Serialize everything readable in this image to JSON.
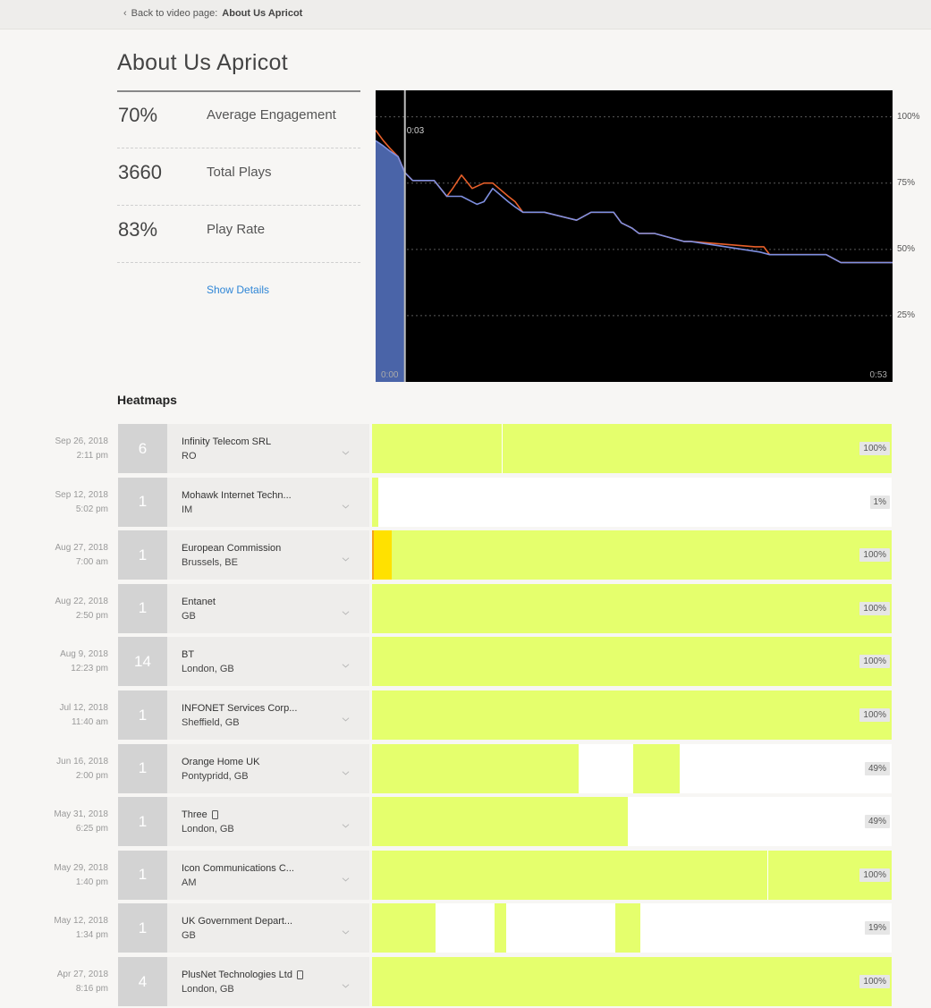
{
  "nav": {
    "back_prefix": "Back to video page:",
    "back_target": "About Us Apricot"
  },
  "page": {
    "title": "About Us Apricot"
  },
  "stats": [
    {
      "value": "70%",
      "label": "Average Engagement"
    },
    {
      "value": "3660",
      "label": "Total Plays"
    },
    {
      "value": "83%",
      "label": "Play Rate"
    }
  ],
  "show_details": "Show Details",
  "chart_data": {
    "type": "line",
    "x_unit": "seconds",
    "xlim": [
      0,
      53
    ],
    "ylim": [
      0,
      110
    ],
    "y_ticks": [
      "100%",
      "75%",
      "50%",
      "25%"
    ],
    "x_start_label": "0:00",
    "x_end_label": "0:53",
    "playhead_label": "0:03",
    "playhead_time": 3,
    "colors": {
      "background": "#000000",
      "blue": "#7e8fe0",
      "orange": "#e8602a",
      "fill": "#4a64a8"
    },
    "series": [
      {
        "color": "blue",
        "x": [
          0,
          0.8,
          1.5,
          2.3,
          3,
          3.8,
          6,
          7.3,
          8.8,
          10.4,
          11.1,
          12,
          13.6,
          14.3,
          15.1,
          17.3,
          20.6,
          22.1,
          24.4,
          25.2,
          26.3,
          27,
          28.6,
          31.6,
          32.3,
          39.4,
          40.4,
          41.2,
          46.2,
          47.7,
          53
        ],
        "y": [
          91,
          89,
          87,
          85,
          79,
          76,
          76,
          70,
          70,
          67,
          68,
          73,
          68,
          66,
          64,
          64,
          61,
          64,
          64,
          60,
          58,
          56,
          56,
          53,
          53,
          49,
          48,
          48,
          48,
          45,
          45
        ]
      },
      {
        "color": "orange",
        "x": [
          0,
          0.8,
          1.5,
          2.3,
          3,
          3.8,
          6,
          7.3,
          7.9,
          8.8,
          9.9,
          11.1,
          12,
          13.6,
          14.3,
          15.1,
          17.3,
          20.6,
          22.1,
          24.4,
          25.2,
          26.3,
          27,
          28.6,
          31.6,
          32.3,
          38.9,
          39.8,
          40.4,
          41.2,
          46.2,
          47.7,
          53
        ],
        "y": [
          95,
          91,
          88,
          85,
          79,
          76,
          76,
          70,
          73,
          78,
          73,
          75,
          75,
          70,
          68,
          64,
          64,
          61,
          64,
          64,
          60,
          58,
          56,
          56,
          53,
          53,
          51,
          51,
          48,
          48,
          48,
          45,
          45
        ]
      }
    ]
  },
  "heatmaps": {
    "title": "Heatmaps",
    "colors": {
      "watched": "#e5ff6d",
      "rewatched": "#ffe100",
      "rewatched_edge": "#f6a31a",
      "unwatched": "#ffffff"
    },
    "rows": [
      {
        "date": "Sep 26, 2018",
        "time": "2:11 pm",
        "count": "6",
        "org": "Infinity Telecom SRL",
        "location": "RO",
        "mobile": false,
        "percent": "100%",
        "segments": [
          {
            "start": 0,
            "end": 0.25,
            "kind": "watched"
          },
          {
            "start": 0.252,
            "end": 1,
            "kind": "watched"
          }
        ]
      },
      {
        "date": "Sep 12, 2018",
        "time": "5:02 pm",
        "count": "1",
        "org": "Mohawk Internet Techn...",
        "location": "IM",
        "mobile": false,
        "percent": "1%",
        "segments": [
          {
            "start": 0,
            "end": 0.012,
            "kind": "watched"
          }
        ]
      },
      {
        "date": "Aug 27, 2018",
        "time": "7:00 am",
        "count": "1",
        "org": "European Commission",
        "location": "Brussels, BE",
        "mobile": false,
        "percent": "100%",
        "segments": [
          {
            "start": 0,
            "end": 0.004,
            "kind": "rewatched_edge"
          },
          {
            "start": 0.004,
            "end": 0.038,
            "kind": "rewatched"
          },
          {
            "start": 0.038,
            "end": 1,
            "kind": "watched"
          }
        ]
      },
      {
        "date": "Aug 22, 2018",
        "time": "2:50 pm",
        "count": "1",
        "org": "Entanet",
        "location": "GB",
        "mobile": false,
        "percent": "100%",
        "segments": [
          {
            "start": 0,
            "end": 1,
            "kind": "watched"
          }
        ]
      },
      {
        "date": "Aug 9, 2018",
        "time": "12:23 pm",
        "count": "14",
        "org": "BT",
        "location": "London, GB",
        "mobile": false,
        "percent": "100%",
        "segments": [
          {
            "start": 0,
            "end": 1,
            "kind": "watched"
          }
        ]
      },
      {
        "date": "Jul 12, 2018",
        "time": "11:40 am",
        "count": "1",
        "org": "INFONET Services Corp...",
        "location": "Sheffield, GB",
        "mobile": false,
        "percent": "100%",
        "segments": [
          {
            "start": 0,
            "end": 1,
            "kind": "watched"
          }
        ]
      },
      {
        "date": "Jun 16, 2018",
        "time": "2:00 pm",
        "count": "1",
        "org": "Orange Home UK",
        "location": "Pontypridd, GB",
        "mobile": false,
        "percent": "49%",
        "segments": [
          {
            "start": 0,
            "end": 0.397,
            "kind": "watched"
          },
          {
            "start": 0.502,
            "end": 0.592,
            "kind": "watched"
          }
        ]
      },
      {
        "date": "May 31, 2018",
        "time": "6:25 pm",
        "count": "1",
        "org": "Three",
        "location": "London, GB",
        "mobile": true,
        "percent": "49%",
        "segments": [
          {
            "start": 0,
            "end": 0.493,
            "kind": "watched"
          }
        ]
      },
      {
        "date": "May 29, 2018",
        "time": "1:40 pm",
        "count": "1",
        "org": "Icon Communications C...",
        "location": "AM",
        "mobile": false,
        "percent": "100%",
        "segments": [
          {
            "start": 0,
            "end": 0.76,
            "kind": "watched"
          },
          {
            "start": 0.762,
            "end": 1,
            "kind": "watched"
          }
        ]
      },
      {
        "date": "May 12, 2018",
        "time": "1:34 pm",
        "count": "1",
        "org": "UK Government Depart...",
        "location": "GB",
        "mobile": false,
        "percent": "19%",
        "segments": [
          {
            "start": 0,
            "end": 0.122,
            "kind": "watched"
          },
          {
            "start": 0.235,
            "end": 0.258,
            "kind": "watched"
          },
          {
            "start": 0.469,
            "end": 0.517,
            "kind": "watched"
          }
        ]
      },
      {
        "date": "Apr 27, 2018",
        "time": "8:16 pm",
        "count": "4",
        "org": "PlusNet Technologies Ltd",
        "location": "London, GB",
        "mobile": true,
        "percent": "100%",
        "segments": [
          {
            "start": 0,
            "end": 1,
            "kind": "watched"
          }
        ]
      }
    ]
  }
}
